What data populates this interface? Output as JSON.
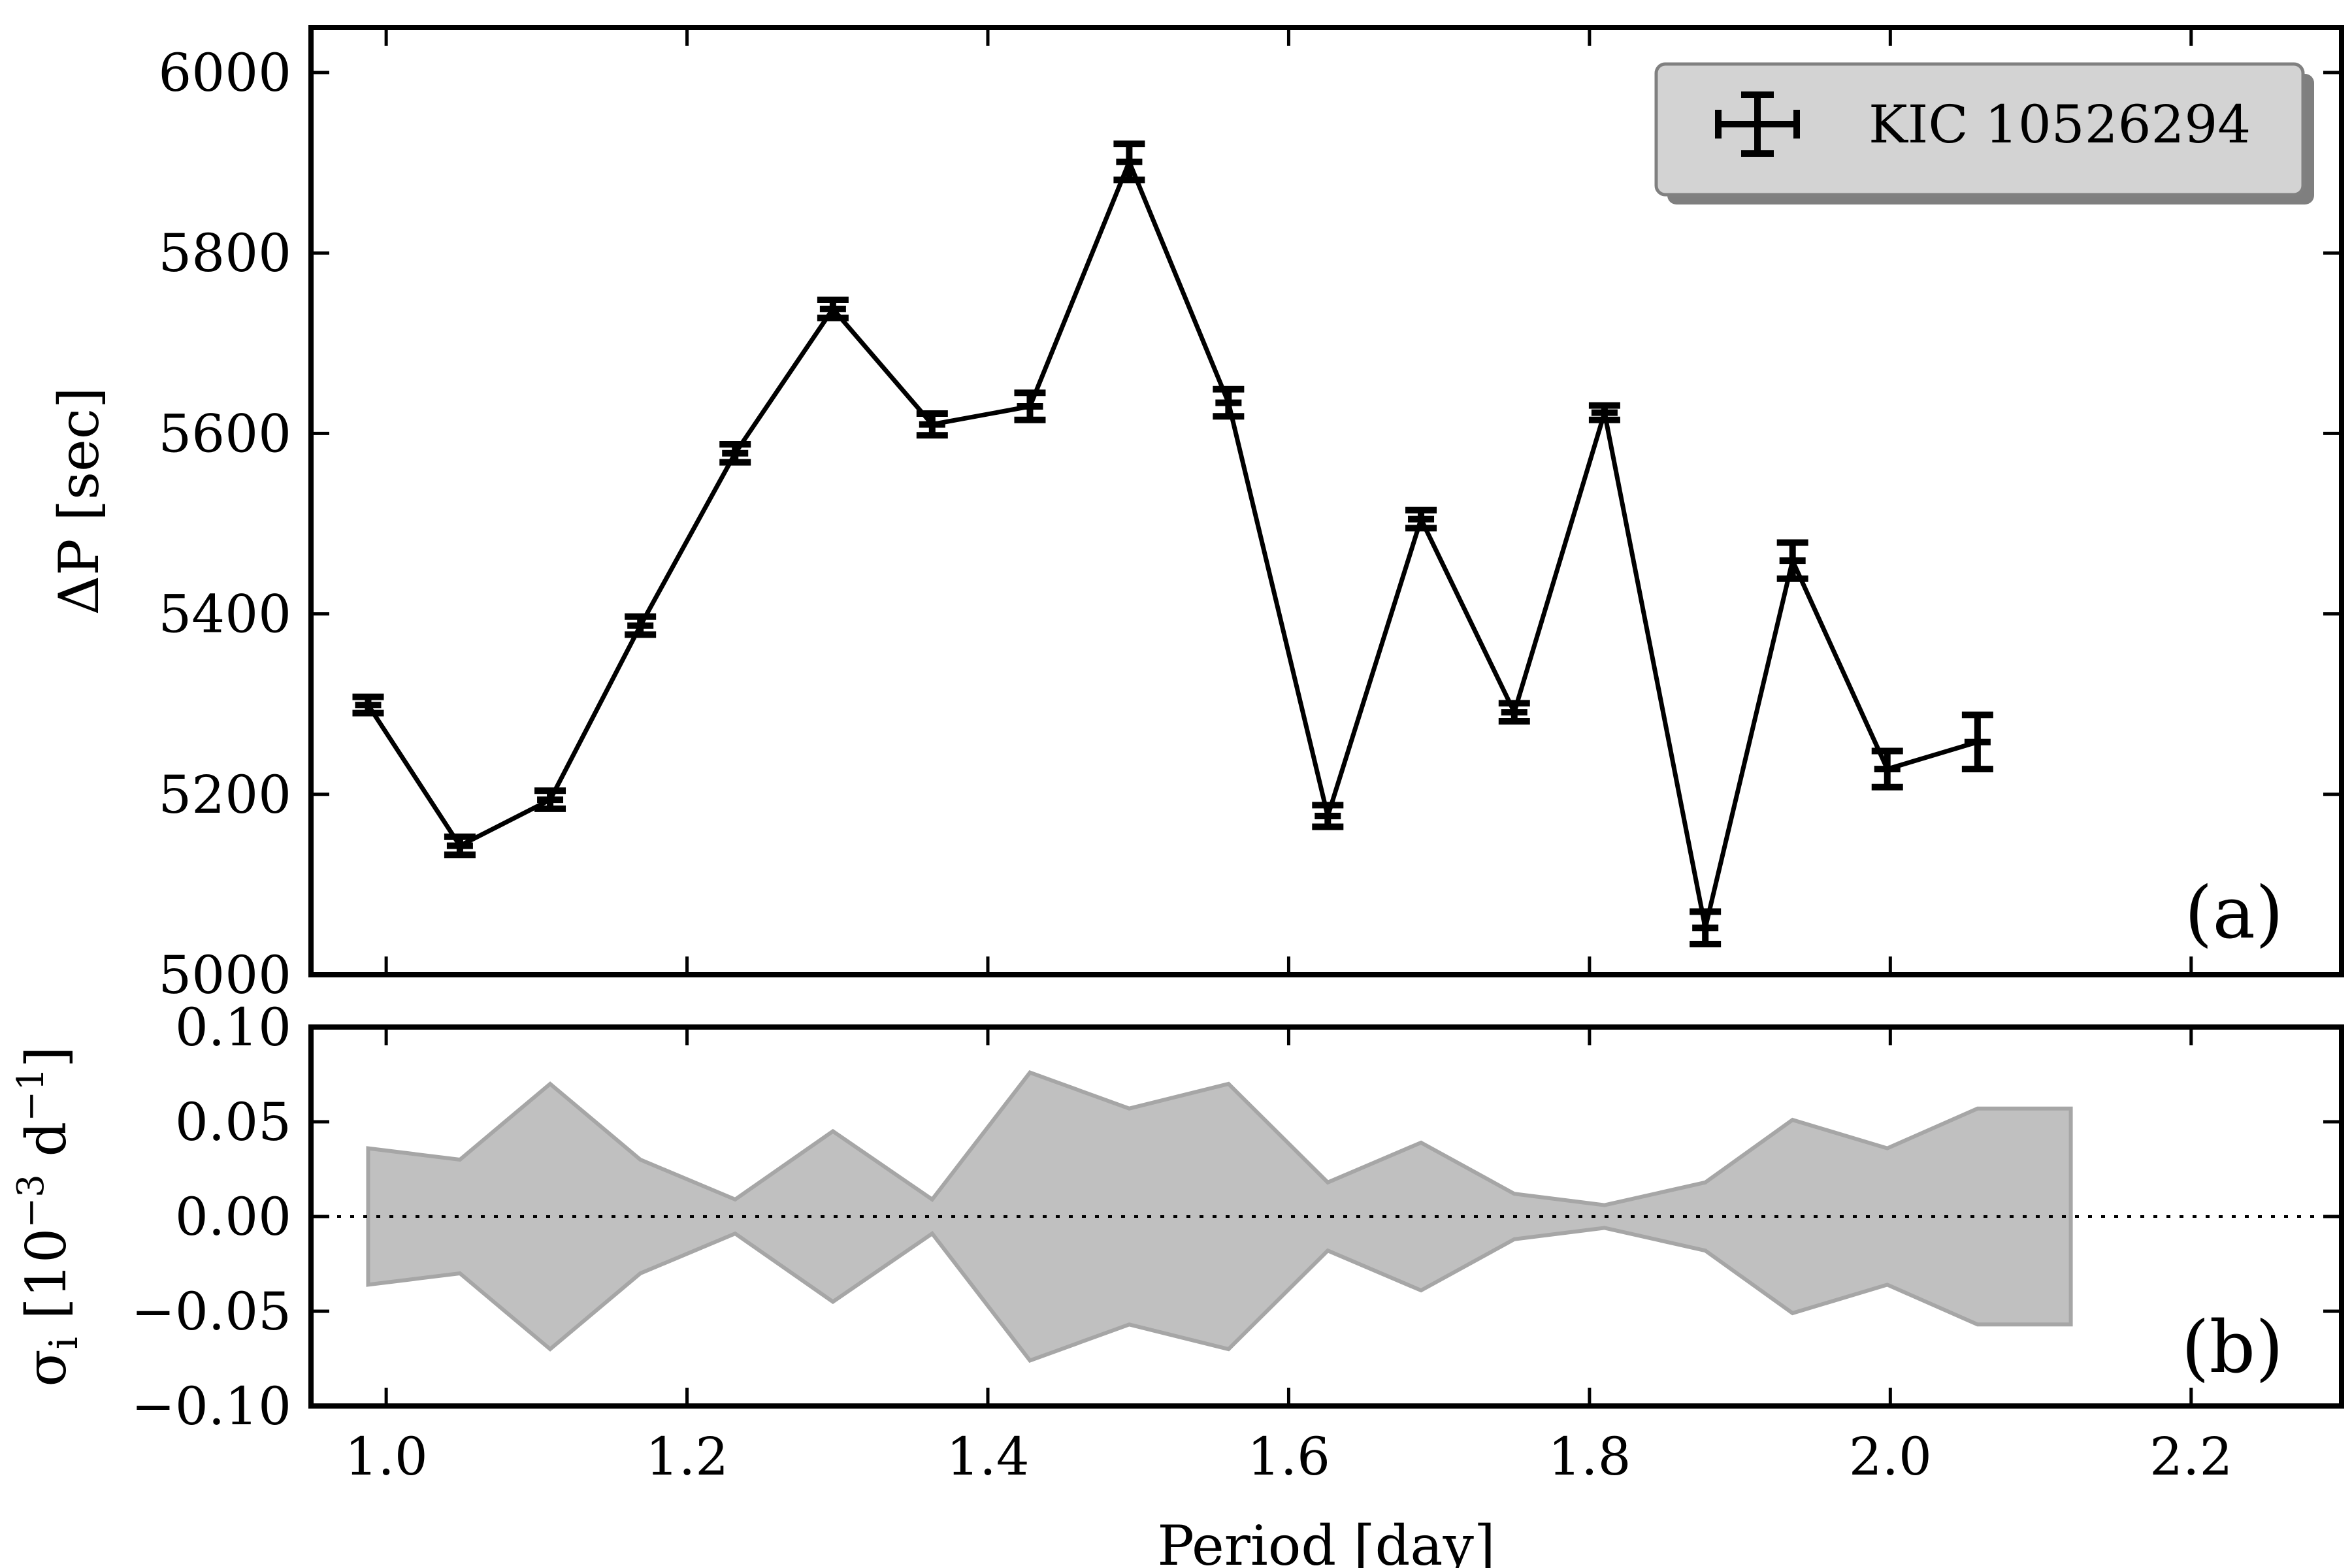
{
  "chart_data": [
    {
      "panel": "(a)",
      "type": "line",
      "ylabel": "ΔP [sec]",
      "xlabel": "",
      "xlim": [
        0.95,
        2.3
      ],
      "ylim": [
        5000,
        6050
      ],
      "x_ticks": [
        1.0,
        1.2,
        1.4,
        1.6,
        1.8,
        2.0,
        2.2
      ],
      "y_ticks": [
        5000,
        5200,
        5400,
        5600,
        5800,
        6000
      ],
      "y_tick_labels": [
        "5000",
        "5200",
        "5400",
        "5600",
        "5800",
        "6000"
      ],
      "legend": {
        "label": "KIC 10526294",
        "position": "top-right"
      },
      "series": [
        {
          "name": "KIC 10526294",
          "x": [
            0.988,
            1.049,
            1.109,
            1.169,
            1.232,
            1.297,
            1.363,
            1.428,
            1.494,
            1.56,
            1.626,
            1.688,
            1.75,
            1.81,
            1.877,
            1.935,
            1.998,
            2.058
          ],
          "y": [
            5299,
            5143,
            5194,
            5387,
            5578,
            5738,
            5610,
            5630,
            5901,
            5634,
            5176,
            5505,
            5291,
            5623,
            5052,
            5459,
            5228,
            5258
          ],
          "yerr": [
            9,
            10,
            10,
            10,
            10,
            10,
            12,
            15,
            20,
            15,
            12,
            10,
            10,
            8,
            18,
            20,
            20,
            30
          ]
        }
      ]
    },
    {
      "panel": "(b)",
      "type": "area",
      "ylabel": "σ_i [10^−3 d^−1]",
      "xlabel": "Period [day]",
      "xlim": [
        0.95,
        2.3
      ],
      "ylim": [
        -0.1,
        0.1
      ],
      "x_ticks": [
        1.0,
        1.2,
        1.4,
        1.6,
        1.8,
        2.0,
        2.2
      ],
      "x_tick_labels": [
        "1.0",
        "1.2",
        "1.4",
        "1.6",
        "1.8",
        "2.0",
        "2.2"
      ],
      "y_ticks": [
        -0.1,
        -0.05,
        0.0,
        0.05,
        0.1
      ],
      "y_tick_labels": [
        "−0.10",
        "−0.05",
        "0.00",
        "0.05",
        "0.10"
      ],
      "zero_line": "dotted",
      "band": {
        "x": [
          0.988,
          1.049,
          1.109,
          1.169,
          1.232,
          1.297,
          1.363,
          1.428,
          1.494,
          1.56,
          1.626,
          1.688,
          1.75,
          1.81,
          1.877,
          1.935,
          1.998,
          2.058,
          2.12
        ],
        "upper": [
          0.036,
          0.03,
          0.07,
          0.03,
          0.009,
          0.045,
          0.009,
          0.076,
          0.057,
          0.07,
          0.018,
          0.039,
          0.012,
          0.006,
          0.018,
          0.051,
          0.036,
          0.057,
          0.057
        ],
        "lower": [
          -0.036,
          -0.03,
          -0.07,
          -0.03,
          -0.009,
          -0.045,
          -0.009,
          -0.076,
          -0.057,
          -0.07,
          -0.018,
          -0.039,
          -0.012,
          -0.006,
          -0.018,
          -0.051,
          -0.036,
          -0.057,
          -0.057
        ]
      }
    }
  ],
  "colors": {
    "line": "#000000",
    "band_fill": "#c0c0c0",
    "band_edge": "#a6a6a6",
    "legend_fill": "#d3d3d3",
    "legend_shadow": "#7f7f7f"
  }
}
